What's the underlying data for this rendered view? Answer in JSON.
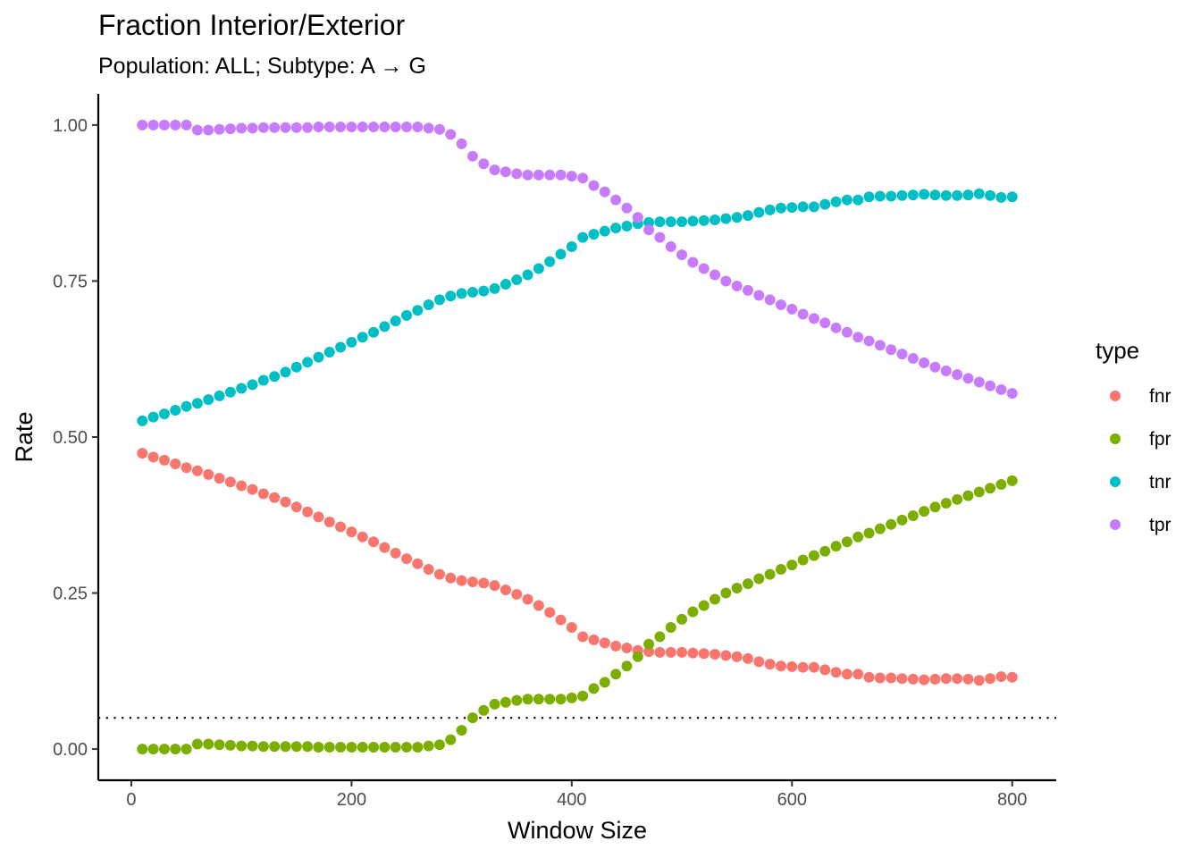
{
  "chart_data": {
    "type": "scatter",
    "title": "Fraction Interior/Exterior",
    "subtitle": "Population: ALL; Subtype: A → G",
    "xlabel": "Window Size",
    "ylabel": "Rate",
    "xlim": [
      -30,
      840
    ],
    "ylim": [
      -0.05,
      1.05
    ],
    "xticks": [
      0,
      200,
      400,
      600,
      800
    ],
    "xtick_labels": [
      "0",
      "200",
      "400",
      "600",
      "800"
    ],
    "yticks": [
      0,
      0.25,
      0.5,
      0.75,
      1.0
    ],
    "ytick_labels": [
      "0.00",
      "0.25",
      "0.50",
      "0.75",
      "1.00"
    ],
    "grid": false,
    "reference_line": {
      "y": 0.05,
      "style": "dotted"
    },
    "legend": {
      "title": "type",
      "placement": "right",
      "entries": [
        "fnr",
        "fpr",
        "tnr",
        "tpr"
      ]
    },
    "x": [
      10,
      20,
      30,
      40,
      50,
      60,
      70,
      80,
      90,
      100,
      110,
      120,
      130,
      140,
      150,
      160,
      170,
      180,
      190,
      200,
      210,
      220,
      230,
      240,
      250,
      260,
      270,
      280,
      290,
      300,
      310,
      320,
      330,
      340,
      350,
      360,
      370,
      380,
      390,
      400,
      410,
      420,
      430,
      440,
      450,
      460,
      470,
      480,
      490,
      500,
      510,
      520,
      530,
      540,
      550,
      560,
      570,
      580,
      590,
      600,
      610,
      620,
      630,
      640,
      650,
      660,
      670,
      680,
      690,
      700,
      710,
      720,
      730,
      740,
      750,
      760,
      770,
      780,
      790,
      800
    ],
    "series": [
      {
        "name": "fnr",
        "color": "#F8766D",
        "values": [
          0.474,
          0.468,
          0.463,
          0.457,
          0.451,
          0.446,
          0.44,
          0.434,
          0.428,
          0.422,
          0.416,
          0.409,
          0.403,
          0.396,
          0.388,
          0.38,
          0.372,
          0.364,
          0.356,
          0.348,
          0.34,
          0.332,
          0.323,
          0.314,
          0.305,
          0.297,
          0.288,
          0.28,
          0.274,
          0.27,
          0.268,
          0.266,
          0.262,
          0.255,
          0.248,
          0.24,
          0.23,
          0.219,
          0.207,
          0.195,
          0.18,
          0.175,
          0.17,
          0.165,
          0.162,
          0.158,
          0.156,
          0.155,
          0.155,
          0.155,
          0.154,
          0.153,
          0.152,
          0.15,
          0.148,
          0.145,
          0.14,
          0.136,
          0.133,
          0.132,
          0.131,
          0.131,
          0.127,
          0.123,
          0.12,
          0.12,
          0.115,
          0.114,
          0.114,
          0.113,
          0.112,
          0.111,
          0.112,
          0.113,
          0.113,
          0.112,
          0.11,
          0.113,
          0.116,
          0.115
        ]
      },
      {
        "name": "fpr",
        "color": "#7CAE00",
        "values": [
          0.0,
          0.0,
          0.0,
          0.0,
          0.0,
          0.008,
          0.008,
          0.007,
          0.006,
          0.005,
          0.005,
          0.004,
          0.004,
          0.004,
          0.004,
          0.004,
          0.003,
          0.003,
          0.003,
          0.003,
          0.003,
          0.003,
          0.003,
          0.003,
          0.003,
          0.003,
          0.005,
          0.007,
          0.015,
          0.03,
          0.05,
          0.062,
          0.072,
          0.075,
          0.078,
          0.08,
          0.08,
          0.08,
          0.08,
          0.082,
          0.085,
          0.097,
          0.107,
          0.12,
          0.133,
          0.148,
          0.168,
          0.18,
          0.195,
          0.208,
          0.22,
          0.23,
          0.24,
          0.25,
          0.258,
          0.265,
          0.273,
          0.28,
          0.288,
          0.295,
          0.303,
          0.31,
          0.317,
          0.325,
          0.332,
          0.34,
          0.346,
          0.353,
          0.36,
          0.367,
          0.374,
          0.381,
          0.388,
          0.394,
          0.4,
          0.406,
          0.412,
          0.418,
          0.424,
          0.43
        ]
      },
      {
        "name": "tnr",
        "color": "#00BFC4",
        "values": [
          0.526,
          0.532,
          0.537,
          0.543,
          0.549,
          0.554,
          0.56,
          0.566,
          0.572,
          0.578,
          0.584,
          0.591,
          0.597,
          0.604,
          0.612,
          0.62,
          0.628,
          0.636,
          0.644,
          0.652,
          0.66,
          0.668,
          0.677,
          0.686,
          0.695,
          0.703,
          0.712,
          0.72,
          0.726,
          0.73,
          0.732,
          0.734,
          0.738,
          0.745,
          0.752,
          0.76,
          0.77,
          0.781,
          0.793,
          0.805,
          0.82,
          0.825,
          0.83,
          0.835,
          0.838,
          0.842,
          0.844,
          0.845,
          0.845,
          0.845,
          0.846,
          0.847,
          0.848,
          0.85,
          0.852,
          0.855,
          0.86,
          0.864,
          0.867,
          0.868,
          0.869,
          0.869,
          0.873,
          0.877,
          0.88,
          0.88,
          0.885,
          0.886,
          0.886,
          0.887,
          0.888,
          0.889,
          0.888,
          0.887,
          0.887,
          0.888,
          0.89,
          0.887,
          0.884,
          0.885
        ]
      },
      {
        "name": "tpr",
        "color": "#C77CFF",
        "values": [
          1.0,
          1.0,
          1.0,
          1.0,
          1.0,
          0.992,
          0.992,
          0.993,
          0.994,
          0.995,
          0.995,
          0.996,
          0.996,
          0.996,
          0.996,
          0.996,
          0.997,
          0.997,
          0.997,
          0.997,
          0.997,
          0.997,
          0.997,
          0.997,
          0.997,
          0.997,
          0.995,
          0.993,
          0.985,
          0.97,
          0.95,
          0.938,
          0.928,
          0.925,
          0.922,
          0.92,
          0.92,
          0.92,
          0.92,
          0.918,
          0.915,
          0.903,
          0.893,
          0.88,
          0.867,
          0.852,
          0.832,
          0.82,
          0.805,
          0.792,
          0.78,
          0.77,
          0.76,
          0.75,
          0.742,
          0.735,
          0.727,
          0.72,
          0.712,
          0.705,
          0.697,
          0.69,
          0.683,
          0.675,
          0.668,
          0.66,
          0.654,
          0.647,
          0.64,
          0.633,
          0.626,
          0.619,
          0.612,
          0.606,
          0.6,
          0.594,
          0.588,
          0.582,
          0.576,
          0.57
        ]
      }
    ]
  }
}
